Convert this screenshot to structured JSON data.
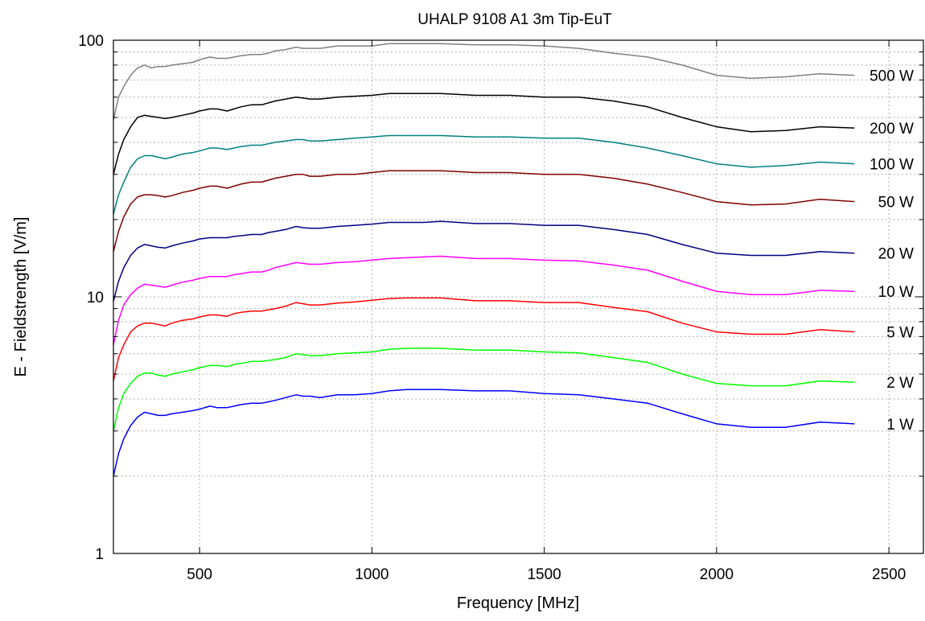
{
  "chart_data": {
    "type": "line",
    "title": "UHALP 9108 A1  3m Tip-EuT",
    "xlabel": "Frequency [MHz]",
    "ylabel": "E - Fieldstrength [V/m]",
    "xlim": [
      250,
      2600
    ],
    "ylim": [
      1,
      100
    ],
    "yscale": "log",
    "grid": true,
    "x_ticks": [
      500,
      1000,
      1500,
      2000,
      2500
    ],
    "x_tick_labels": [
      "500",
      "1000",
      "1500",
      "2000",
      "2500"
    ],
    "y_ticks": [
      1,
      10,
      100
    ],
    "y_tick_labels": [
      "1",
      "10",
      "100"
    ],
    "legend": "inline labels at right end of each curve",
    "x": [
      250,
      265,
      280,
      300,
      320,
      340,
      360,
      380,
      400,
      420,
      450,
      480,
      500,
      530,
      550,
      580,
      600,
      620,
      650,
      680,
      700,
      720,
      750,
      780,
      800,
      820,
      850,
      900,
      950,
      1000,
      1050,
      1100,
      1150,
      1200,
      1300,
      1400,
      1500,
      1600,
      1700,
      1800,
      1900,
      2000,
      2100,
      2200,
      2300,
      2400
    ],
    "series": [
      {
        "name": "500 W",
        "label": "500 W",
        "color": "#808080",
        "values": [
          49,
          60,
          66,
          73,
          78,
          80,
          78,
          79,
          79,
          80,
          81,
          82,
          84,
          86,
          85,
          85,
          86,
          87,
          88,
          88,
          89,
          91,
          92,
          94,
          93,
          93,
          93,
          95,
          95,
          95,
          97,
          97,
          97,
          97,
          96,
          96,
          95,
          93,
          89,
          86,
          80,
          73,
          71,
          72,
          74,
          73
        ]
      },
      {
        "name": "200 W",
        "label": "200 W",
        "color": "#000000",
        "values": [
          30,
          36,
          41,
          46,
          50,
          51,
          50.5,
          50,
          49.5,
          50,
          51,
          52,
          53,
          54,
          54,
          53,
          54,
          55,
          56,
          56,
          57,
          58,
          59,
          60,
          59.5,
          59,
          59,
          60,
          60.5,
          61,
          62,
          62,
          62,
          62,
          61,
          61,
          60,
          60,
          58,
          55,
          50,
          46,
          44,
          44.5,
          46,
          45.5
        ]
      },
      {
        "name": "100 W",
        "label": "100 W",
        "color": "#008080",
        "values": [
          21,
          25,
          28,
          32,
          34.5,
          35.5,
          35.5,
          35,
          34.5,
          35,
          36,
          36.5,
          37,
          38,
          38,
          37.5,
          38,
          38.5,
          39,
          39,
          39.5,
          40,
          40.5,
          41,
          41,
          40.5,
          40.5,
          41,
          41.5,
          42,
          42.5,
          42.5,
          42.5,
          42.5,
          42,
          42,
          41.5,
          41.5,
          40,
          38,
          35.5,
          33,
          32,
          32.5,
          33.5,
          33
        ]
      },
      {
        "name": "50 W",
        "label": "50 W",
        "color": "#800000",
        "values": [
          15,
          18,
          20.5,
          23,
          24.5,
          25,
          25,
          24.8,
          24.5,
          24.8,
          25.5,
          26,
          26.5,
          27,
          27,
          26.5,
          27,
          27.5,
          28,
          28,
          28.5,
          29,
          29.5,
          30,
          30,
          29.5,
          29.5,
          30,
          30,
          30.5,
          31,
          31,
          31,
          31,
          30.5,
          30.5,
          30,
          30,
          29,
          27.5,
          25.5,
          23.5,
          22.8,
          23,
          24,
          23.5
        ]
      },
      {
        "name": "20 W",
        "label": "20 W",
        "color": "#000080",
        "values": [
          9.6,
          11.5,
          13,
          14.5,
          15.5,
          16,
          15.8,
          15.6,
          15.5,
          15.8,
          16.2,
          16.5,
          16.8,
          17,
          17,
          17,
          17.2,
          17.3,
          17.5,
          17.5,
          17.8,
          18,
          18.3,
          18.8,
          18.6,
          18.5,
          18.5,
          18.8,
          19,
          19.2,
          19.5,
          19.5,
          19.5,
          19.7,
          19.3,
          19.3,
          19,
          19,
          18.3,
          17.5,
          16,
          14.8,
          14.5,
          14.5,
          15,
          14.8
        ]
      },
      {
        "name": "10 W",
        "label": "10 W",
        "color": "#ff00ff",
        "values": [
          6.5,
          8.1,
          9.3,
          10.2,
          10.8,
          11.2,
          11.1,
          11,
          10.9,
          11.1,
          11.4,
          11.6,
          11.8,
          12,
          12,
          12,
          12.2,
          12.3,
          12.5,
          12.5,
          12.7,
          13,
          13.3,
          13.6,
          13.5,
          13.4,
          13.4,
          13.6,
          13.7,
          13.9,
          14.1,
          14.2,
          14.3,
          14.4,
          14.1,
          14.1,
          13.9,
          13.8,
          13.3,
          12.7,
          11.5,
          10.5,
          10.2,
          10.2,
          10.6,
          10.5
        ]
      },
      {
        "name": "5 W",
        "label": "5 W",
        "color": "#ff0000",
        "values": [
          4.7,
          5.8,
          6.5,
          7.3,
          7.7,
          7.9,
          7.9,
          7.8,
          7.7,
          7.9,
          8.1,
          8.2,
          8.35,
          8.5,
          8.5,
          8.4,
          8.6,
          8.7,
          8.8,
          8.8,
          8.9,
          9,
          9.2,
          9.5,
          9.4,
          9.3,
          9.3,
          9.45,
          9.55,
          9.7,
          9.85,
          9.9,
          9.9,
          9.9,
          9.65,
          9.65,
          9.5,
          9.5,
          9.1,
          8.75,
          7.9,
          7.3,
          7.15,
          7.15,
          7.45,
          7.3
        ]
      },
      {
        "name": "2 W",
        "label": "2 W",
        "color": "#00ff00",
        "values": [
          3,
          3.7,
          4.2,
          4.6,
          4.9,
          5.05,
          5.05,
          4.95,
          4.9,
          5,
          5.1,
          5.2,
          5.3,
          5.4,
          5.4,
          5.35,
          5.45,
          5.5,
          5.6,
          5.6,
          5.65,
          5.7,
          5.8,
          6,
          5.95,
          5.9,
          5.9,
          6,
          6.05,
          6.1,
          6.25,
          6.3,
          6.3,
          6.3,
          6.2,
          6.2,
          6.1,
          6.05,
          5.8,
          5.55,
          5,
          4.6,
          4.5,
          4.5,
          4.7,
          4.65
        ]
      },
      {
        "name": "1 W",
        "label": "1 W",
        "color": "#0000ff",
        "values": [
          2,
          2.45,
          2.8,
          3.15,
          3.4,
          3.55,
          3.5,
          3.45,
          3.45,
          3.5,
          3.55,
          3.6,
          3.65,
          3.75,
          3.7,
          3.7,
          3.75,
          3.8,
          3.85,
          3.85,
          3.9,
          3.95,
          4.05,
          4.15,
          4.1,
          4.1,
          4.05,
          4.15,
          4.15,
          4.2,
          4.3,
          4.35,
          4.35,
          4.35,
          4.3,
          4.3,
          4.2,
          4.15,
          4,
          3.85,
          3.5,
          3.2,
          3.1,
          3.1,
          3.25,
          3.2
        ]
      }
    ]
  }
}
